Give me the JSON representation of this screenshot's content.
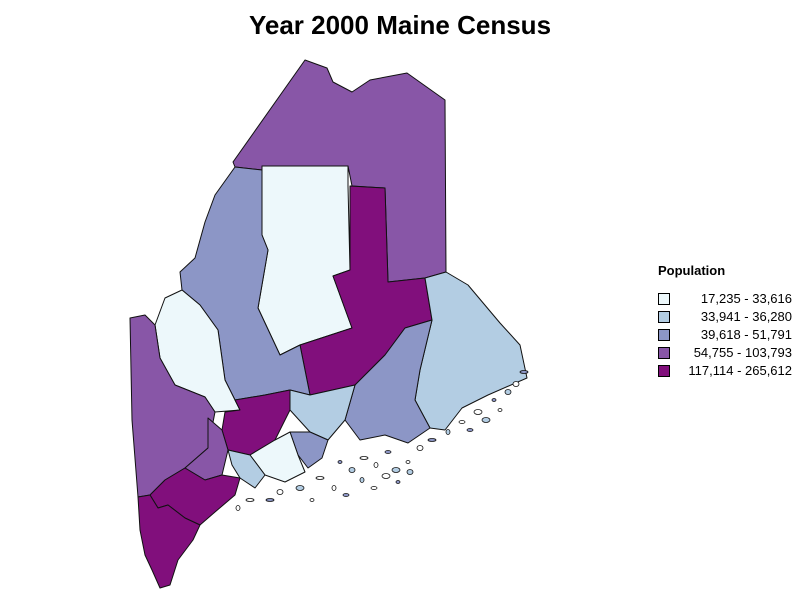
{
  "title": "Year 2000 Maine Census",
  "legend": {
    "title": "Population",
    "classes": [
      {
        "label": "17,235 - 33,616",
        "color": "#edf8fb"
      },
      {
        "label": "33,941 - 36,280",
        "color": "#b3cde3"
      },
      {
        "label": "39,618 - 51,791",
        "color": "#8c96c6"
      },
      {
        "label": "54,755 - 103,793",
        "color": "#8856a7"
      },
      {
        "label": "117,114 - 265,612",
        "color": "#810f7c"
      }
    ]
  }
}
